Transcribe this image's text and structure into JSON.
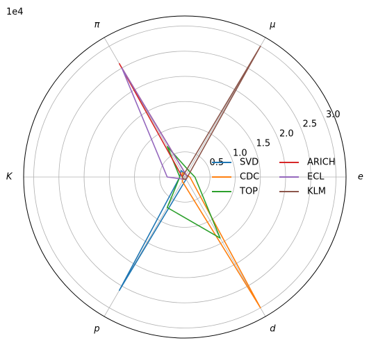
{
  "chart_data": {
    "type": "line",
    "subtype": "polar",
    "title": "",
    "categories": [
      "e",
      "μ",
      "π",
      "K",
      "p",
      "d"
    ],
    "category_angles_deg": [
      0,
      60,
      120,
      180,
      240,
      300
    ],
    "radial_axis": {
      "offset_text": "1e4",
      "ticks": [
        0.5,
        1.0,
        1.5,
        2.0,
        2.5,
        3.0
      ],
      "tick_labels": [
        "0.5",
        "1.0",
        "1.5",
        "2.0",
        "2.5",
        "3.0"
      ],
      "rmax": 3.2,
      "label_angle_deg": 22.5
    },
    "grid": true,
    "legend": {
      "placement": "right",
      "columns": 2
    },
    "series": [
      {
        "name": "SVD",
        "color": "#1f77b4",
        "values": [
          0.05,
          0.05,
          0.15,
          0.1,
          2.6,
          0.05
        ]
      },
      {
        "name": "CDC",
        "color": "#ff7f0e",
        "values": [
          0.1,
          0.05,
          0.1,
          0.05,
          0.1,
          3.0
        ]
      },
      {
        "name": "TOP",
        "color": "#2ca02c",
        "values": [
          0.2,
          0.15,
          0.7,
          0.1,
          0.7,
          1.4
        ]
      },
      {
        "name": "ARICH",
        "color": "#d62728",
        "values": [
          0.05,
          0.05,
          2.6,
          0.05,
          0.05,
          0.05
        ]
      },
      {
        "name": "ECL",
        "color": "#9467bd",
        "values": [
          0.05,
          0.05,
          2.5,
          0.35,
          0.05,
          0.05
        ]
      },
      {
        "name": "KLM",
        "color": "#8c564b",
        "values": [
          0.05,
          3.0,
          0.05,
          0.05,
          0.05,
          0.05
        ]
      }
    ]
  }
}
